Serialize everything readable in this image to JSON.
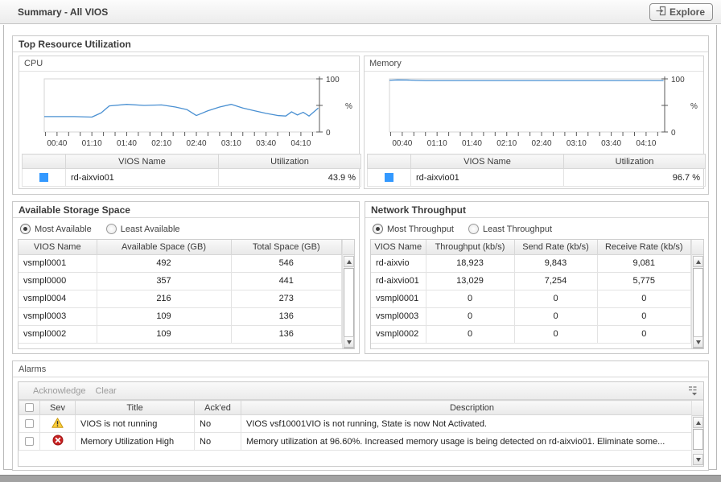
{
  "titlebar": {
    "title": "Summary - All VIOS",
    "explore_label": "Explore"
  },
  "colors": {
    "series_blue": "#3399ff",
    "line_blue": "#4a90d2",
    "warning_yellow": "#fdcf3c",
    "error_red": "#c82121"
  },
  "top_resource": {
    "title": "Top Resource Utilization",
    "cpu": {
      "title": "CPU",
      "col_name": "VIOS Name",
      "col_utilization": "Utilization",
      "rows": [
        {
          "name": "rd-aixvio01",
          "utilization": "43.9 %"
        }
      ]
    },
    "memory": {
      "title": "Memory",
      "col_name": "VIOS Name",
      "col_utilization": "Utilization",
      "rows": [
        {
          "name": "rd-aixvio01",
          "utilization": "96.7 %"
        }
      ]
    }
  },
  "chart_data": {
    "cpu": {
      "type": "line",
      "ylabel": "%",
      "ylim": [
        0,
        100
      ],
      "yticks": [
        0,
        50,
        100
      ],
      "xlim": [
        29,
        266
      ],
      "minor_start": 30,
      "minor_end": 260,
      "minor_step": 10,
      "xticks": [
        40,
        70,
        100,
        130,
        160,
        190,
        220,
        250
      ],
      "xtick_labels": [
        "00:40",
        "01:10",
        "01:40",
        "02:10",
        "02:40",
        "03:10",
        "03:40",
        "04:10"
      ],
      "line_color": "#4a90d2",
      "series": [
        {
          "name": "rd-aixvio01",
          "x": [
            29,
            40,
            55,
            70,
            78,
            85,
            100,
            115,
            130,
            142,
            152,
            160,
            170,
            180,
            190,
            200,
            210,
            220,
            230,
            237,
            242,
            247,
            252,
            257,
            265
          ],
          "y": [
            29,
            29,
            29,
            28,
            36,
            49,
            52,
            50,
            51,
            47,
            42,
            31,
            40,
            47,
            52,
            45,
            40,
            35,
            31,
            30,
            38,
            32,
            37,
            30,
            45
          ]
        }
      ]
    },
    "memory": {
      "type": "line",
      "ylabel": "%",
      "ylim": [
        0,
        100
      ],
      "yticks": [
        0,
        50,
        100
      ],
      "xlim": [
        29,
        266
      ],
      "minor_start": 30,
      "minor_end": 260,
      "minor_step": 10,
      "xticks": [
        40,
        70,
        100,
        130,
        160,
        190,
        220,
        250
      ],
      "xtick_labels": [
        "00:40",
        "01:10",
        "01:40",
        "02:10",
        "02:40",
        "03:10",
        "03:40",
        "04:10"
      ],
      "line_color": "#4a90d2",
      "series": [
        {
          "name": "rd-aixvio01",
          "x": [
            29,
            36,
            44,
            52,
            60,
            100,
            150,
            200,
            265
          ],
          "y": [
            97.4,
            98,
            97.8,
            97.2,
            96.8,
            96.8,
            96.8,
            96.8,
            96.8
          ]
        }
      ]
    }
  },
  "storage": {
    "title": "Available Storage Space",
    "radio_most": "Most Available",
    "radio_least": "Least Available",
    "headers": [
      "VIOS Name",
      "Available Space (GB)",
      "Total Space (GB)"
    ],
    "rows": [
      [
        "vsmpl0001",
        "492",
        "546"
      ],
      [
        "vsmpl0000",
        "357",
        "441"
      ],
      [
        "vsmpl0004",
        "216",
        "273"
      ],
      [
        "vsmpl0003",
        "109",
        "136"
      ],
      [
        "vsmpl0002",
        "109",
        "136"
      ]
    ]
  },
  "network": {
    "title": "Network Throughput",
    "radio_most": "Most Throughput",
    "radio_least": "Least Throughput",
    "headers": [
      "VIOS Name",
      "Throughput (kb/s)",
      "Send Rate (kb/s)",
      "Receive Rate (kb/s)"
    ],
    "rows": [
      [
        "rd-aixvio",
        "18,923",
        "9,843",
        "9,081"
      ],
      [
        "rd-aixvio01",
        "13,029",
        "7,254",
        "5,775"
      ],
      [
        "vsmpl0001",
        "0",
        "0",
        "0"
      ],
      [
        "vsmpl0003",
        "0",
        "0",
        "0"
      ],
      [
        "vsmpl0002",
        "0",
        "0",
        "0"
      ]
    ]
  },
  "alarms": {
    "title": "Alarms",
    "toolbar": {
      "acknowledge": "Acknowledge",
      "clear": "Clear"
    },
    "headers": {
      "sev": "Sev",
      "title": "Title",
      "acked": "Ack'ed",
      "description": "Description"
    },
    "rows": [
      {
        "severity": "warning",
        "title": "VIOS is not running",
        "acked": "No",
        "description": "VIOS vsf10001VIO is not running, State is now Not Activated."
      },
      {
        "severity": "error",
        "title": "Memory Utilization High",
        "acked": "No",
        "description": "Memory utilization at 96.60%. Increased memory usage is being detected on rd-aixvio01. Eliminate some..."
      }
    ]
  }
}
